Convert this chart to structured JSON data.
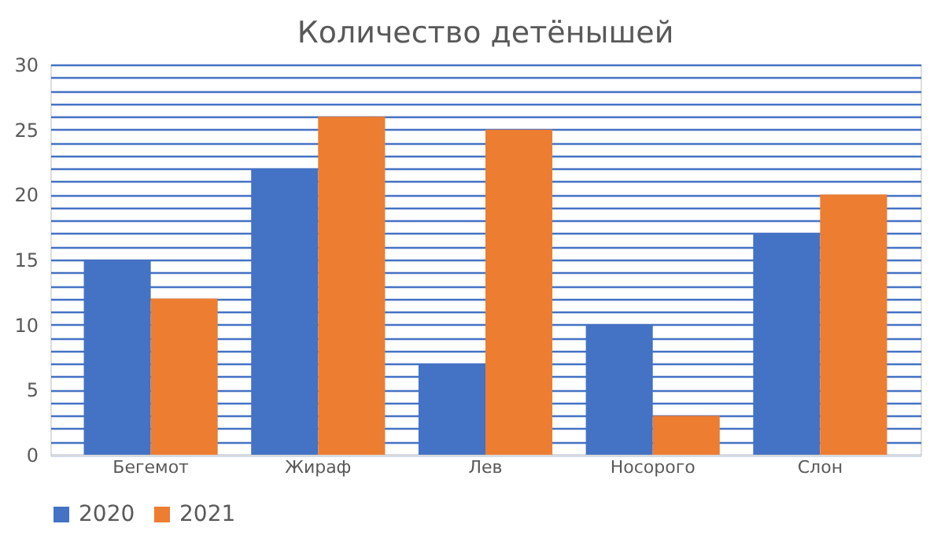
{
  "chart_data": {
    "type": "bar",
    "title": "Количество детёнышей",
    "categories": [
      "Бегемот",
      "Жираф",
      "Лев",
      "Носорого",
      "Слон"
    ],
    "series": [
      {
        "name": "2020",
        "color": "#4472c4",
        "values": [
          15,
          22,
          7,
          10,
          17
        ]
      },
      {
        "name": "2021",
        "color": "#ed7d31",
        "values": [
          12,
          26,
          25,
          3,
          20
        ]
      }
    ],
    "ylim": [
      0,
      30
    ],
    "yticks": [
      0,
      {
        "value": 1,
        "label": null
      },
      {
        "value": 2,
        "label": null
      },
      {
        "value": 3,
        "label": null
      },
      {
        "value": 4,
        "label": null
      },
      5,
      {
        "value": 6,
        "label": null
      },
      {
        "value": 7,
        "label": null
      },
      {
        "value": 8,
        "label": null
      },
      {
        "value": 9,
        "label": null
      },
      10,
      {
        "value": 11,
        "label": null
      },
      {
        "value": 12,
        "label": null
      },
      {
        "value": 13,
        "label": null
      },
      {
        "value": 14,
        "label": null
      },
      15,
      {
        "value": 16,
        "label": null
      },
      {
        "value": 17,
        "label": null
      },
      {
        "value": 18,
        "label": null
      },
      {
        "value": 19,
        "label": null
      },
      20,
      {
        "value": 21,
        "label": null
      },
      {
        "value": 22,
        "label": null
      },
      {
        "value": 23,
        "label": null
      },
      {
        "value": 24,
        "label": null
      },
      25,
      {
        "value": 26,
        "label": null
      },
      {
        "value": 27,
        "label": null
      },
      {
        "value": 28,
        "label": null
      },
      {
        "value": 29,
        "label": null
      },
      30
    ],
    "grid": "y",
    "legend": "bottom"
  }
}
